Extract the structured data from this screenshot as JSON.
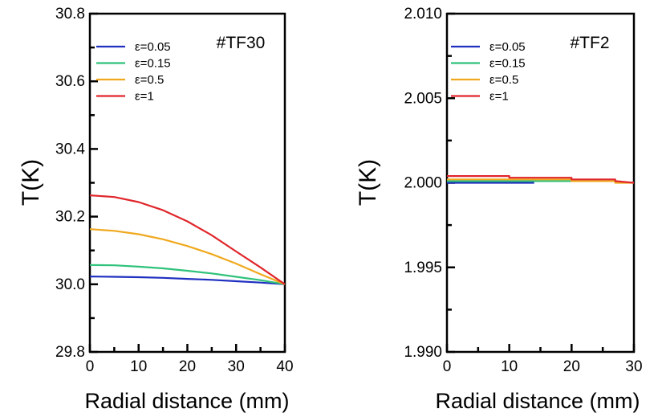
{
  "chart_data": [
    {
      "type": "line",
      "annotation": "#TF30",
      "xlabel": "Radial distance (mm)",
      "ylabel": "T(K)",
      "xlim": [
        0,
        40
      ],
      "ylim": [
        29.8,
        30.8
      ],
      "xticks": [
        "0",
        "10",
        "20",
        "30",
        "40"
      ],
      "yticks": [
        "29.8",
        "30.0",
        "30.2",
        "30.4",
        "30.6",
        "30.8"
      ],
      "legend_position": "top-left",
      "series": [
        {
          "name": "ε=0.05",
          "color": "#1f2fbf",
          "x": [
            0,
            5,
            10,
            15,
            20,
            25,
            30,
            35,
            40
          ],
          "y": [
            30.023,
            30.022,
            30.021,
            30.019,
            30.016,
            30.013,
            30.009,
            30.005,
            30.0
          ]
        },
        {
          "name": "ε=0.15",
          "color": "#2fc27a",
          "x": [
            0,
            5,
            10,
            15,
            20,
            25,
            30,
            35,
            40
          ],
          "y": [
            30.057,
            30.056,
            30.052,
            30.047,
            30.04,
            30.032,
            30.022,
            30.012,
            30.0
          ]
        },
        {
          "name": "ε=0.5",
          "color": "#f0a91e",
          "x": [
            0,
            5,
            10,
            15,
            20,
            25,
            30,
            35,
            40
          ],
          "y": [
            30.163,
            30.158,
            30.148,
            30.133,
            30.113,
            30.089,
            30.061,
            30.03,
            30.0
          ]
        },
        {
          "name": "ε=1",
          "color": "#e0262b",
          "x": [
            0,
            5,
            10,
            15,
            20,
            25,
            30,
            35,
            40
          ],
          "y": [
            30.263,
            30.258,
            30.243,
            30.219,
            30.186,
            30.145,
            30.097,
            30.05,
            30.0
          ]
        }
      ]
    },
    {
      "type": "line",
      "annotation": "#TF2",
      "xlabel": "Radial distance (mm)",
      "ylabel": "T(K)",
      "xlim": [
        0,
        30
      ],
      "ylim": [
        1.99,
        2.01
      ],
      "xticks": [
        "0",
        "10",
        "20",
        "30"
      ],
      "yticks": [
        "1.990",
        "1.995",
        "2.000",
        "2.005",
        "2.010"
      ],
      "legend_position": "top-left",
      "series": [
        {
          "name": "ε=0.05",
          "color": "#1f2fbf",
          "x": [
            0,
            14
          ],
          "y": [
            2.0,
            2.0
          ]
        },
        {
          "name": "ε=0.15",
          "color": "#2fc27a",
          "x": [
            0,
            25
          ],
          "y": [
            2.0001,
            2.0001
          ]
        },
        {
          "name": "ε=0.5",
          "color": "#f0a91e",
          "x": [
            0,
            10,
            10,
            20,
            20,
            27,
            27,
            30
          ],
          "y": [
            2.0002,
            2.0002,
            2.0002,
            2.0002,
            2.0001,
            2.0001,
            2.0,
            2.0
          ]
        },
        {
          "name": "ε=1",
          "color": "#e0262b",
          "x": [
            0,
            10,
            10,
            20,
            20,
            27,
            27,
            30
          ],
          "y": [
            2.0004,
            2.0004,
            2.0003,
            2.0003,
            2.0002,
            2.0002,
            2.0001,
            2.0
          ]
        }
      ]
    }
  ]
}
